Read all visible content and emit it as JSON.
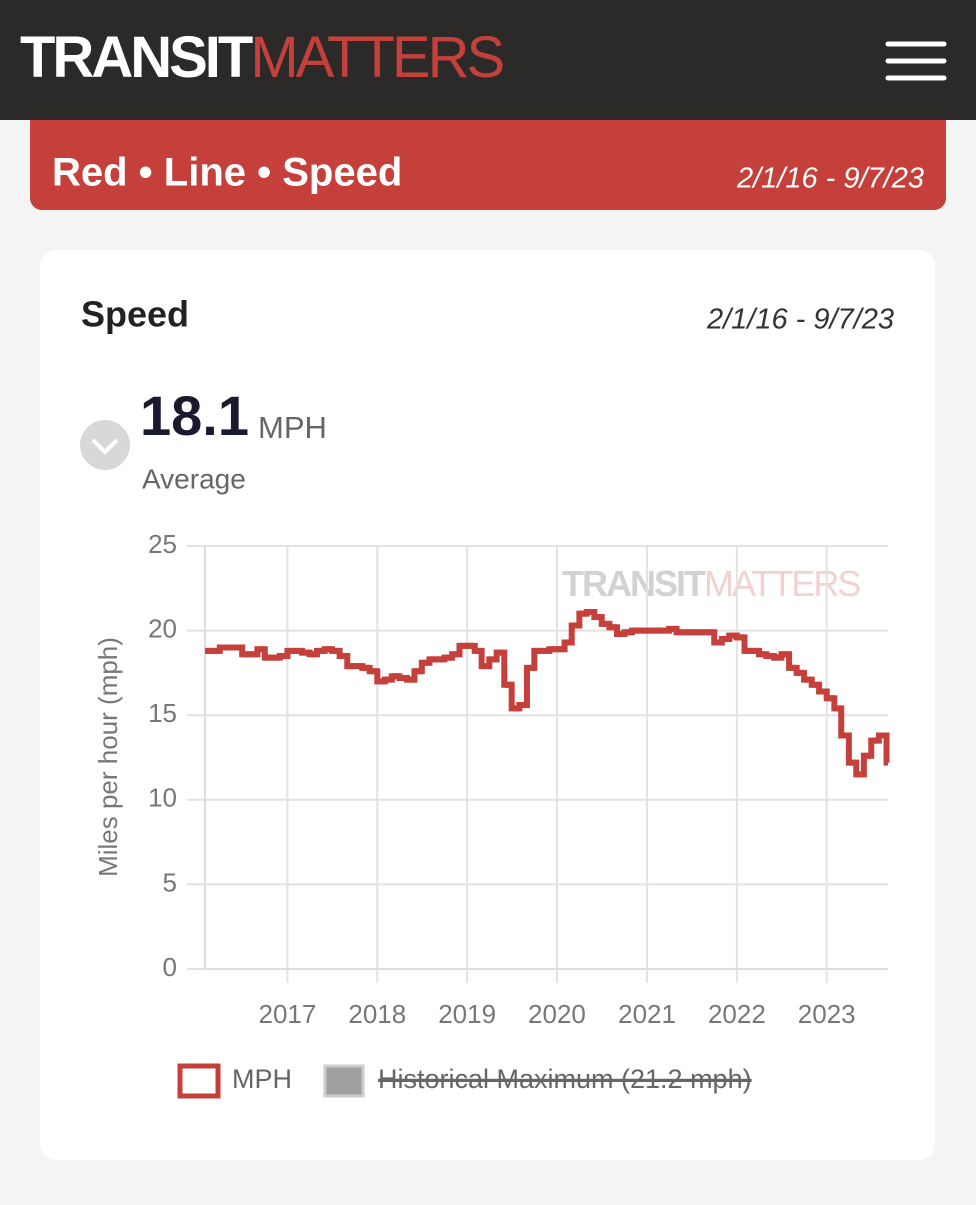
{
  "header": {
    "logo_a": "TRANSIT",
    "logo_b": "MATTERS"
  },
  "banner": {
    "title": "Red • Line • Speed",
    "date_range": "2/1/16 - 9/7/23"
  },
  "card": {
    "title": "Speed",
    "date_range": "2/1/16 - 9/7/23",
    "stat_value": "18.1",
    "stat_unit": "MPH",
    "stat_label": "Average"
  },
  "chart_data": {
    "type": "line",
    "step": true,
    "y_label": "Miles per hour (mph)",
    "xlim": [
      "2016-02-01",
      "2023-09-07"
    ],
    "xticks": [
      "2017",
      "2018",
      "2019",
      "2020",
      "2021",
      "2022",
      "2023"
    ],
    "ylim": [
      0,
      25
    ],
    "yticks": [
      0,
      5,
      10,
      15,
      20,
      25
    ],
    "grid": true,
    "x": [
      "2016-02",
      "2016-03",
      "2016-04",
      "2016-05",
      "2016-06",
      "2016-07",
      "2016-08",
      "2016-09",
      "2016-10",
      "2016-11",
      "2016-12",
      "2017-01",
      "2017-02",
      "2017-03",
      "2017-04",
      "2017-05",
      "2017-06",
      "2017-07",
      "2017-08",
      "2017-09",
      "2017-10",
      "2017-11",
      "2017-12",
      "2018-01",
      "2018-02",
      "2018-03",
      "2018-04",
      "2018-05",
      "2018-06",
      "2018-07",
      "2018-08",
      "2018-09",
      "2018-10",
      "2018-11",
      "2018-12",
      "2019-01",
      "2019-02",
      "2019-03",
      "2019-04",
      "2019-05",
      "2019-06",
      "2019-07",
      "2019-08",
      "2019-09",
      "2019-10",
      "2019-11",
      "2019-12",
      "2020-01",
      "2020-02",
      "2020-03",
      "2020-04",
      "2020-05",
      "2020-06",
      "2020-07",
      "2020-08",
      "2020-09",
      "2020-10",
      "2020-11",
      "2020-12",
      "2021-01",
      "2021-02",
      "2021-03",
      "2021-04",
      "2021-05",
      "2021-06",
      "2021-07",
      "2021-08",
      "2021-09",
      "2021-10",
      "2021-11",
      "2021-12",
      "2022-01",
      "2022-02",
      "2022-03",
      "2022-04",
      "2022-05",
      "2022-06",
      "2022-07",
      "2022-08",
      "2022-09",
      "2022-10",
      "2022-11",
      "2022-12",
      "2023-01",
      "2023-02",
      "2023-03",
      "2023-04",
      "2023-05",
      "2023-06",
      "2023-07",
      "2023-08",
      "2023-09"
    ],
    "series": [
      {
        "name": "MPH",
        "color": "#c5403a",
        "values": [
          18.8,
          18.8,
          19.0,
          19.0,
          19.0,
          18.6,
          18.6,
          18.9,
          18.4,
          18.4,
          18.5,
          18.8,
          18.8,
          18.7,
          18.6,
          18.8,
          18.9,
          18.8,
          18.5,
          17.9,
          17.9,
          17.8,
          17.6,
          17.0,
          17.1,
          17.3,
          17.2,
          17.1,
          17.6,
          18.1,
          18.3,
          18.3,
          18.4,
          18.6,
          19.1,
          19.1,
          18.8,
          17.9,
          18.3,
          18.7,
          16.8,
          15.4,
          15.6,
          17.8,
          18.8,
          18.8,
          18.9,
          18.9,
          19.3,
          20.3,
          21.0,
          21.1,
          20.8,
          20.4,
          20.2,
          19.8,
          19.9,
          20.0,
          20.0,
          20.0,
          20.0,
          20.0,
          20.1,
          19.9,
          19.9,
          19.9,
          19.9,
          19.9,
          19.3,
          19.5,
          19.7,
          19.6,
          18.8,
          18.8,
          18.6,
          18.5,
          18.4,
          18.6,
          17.8,
          17.5,
          17.1,
          16.8,
          16.4,
          16.0,
          15.4,
          13.8,
          12.2,
          11.5,
          12.6,
          13.5,
          13.8,
          12.2
        ]
      }
    ],
    "hidden_series_label": "Historical Maximum (21.2 mph)",
    "hidden_series_color": "#a0a0a0"
  }
}
